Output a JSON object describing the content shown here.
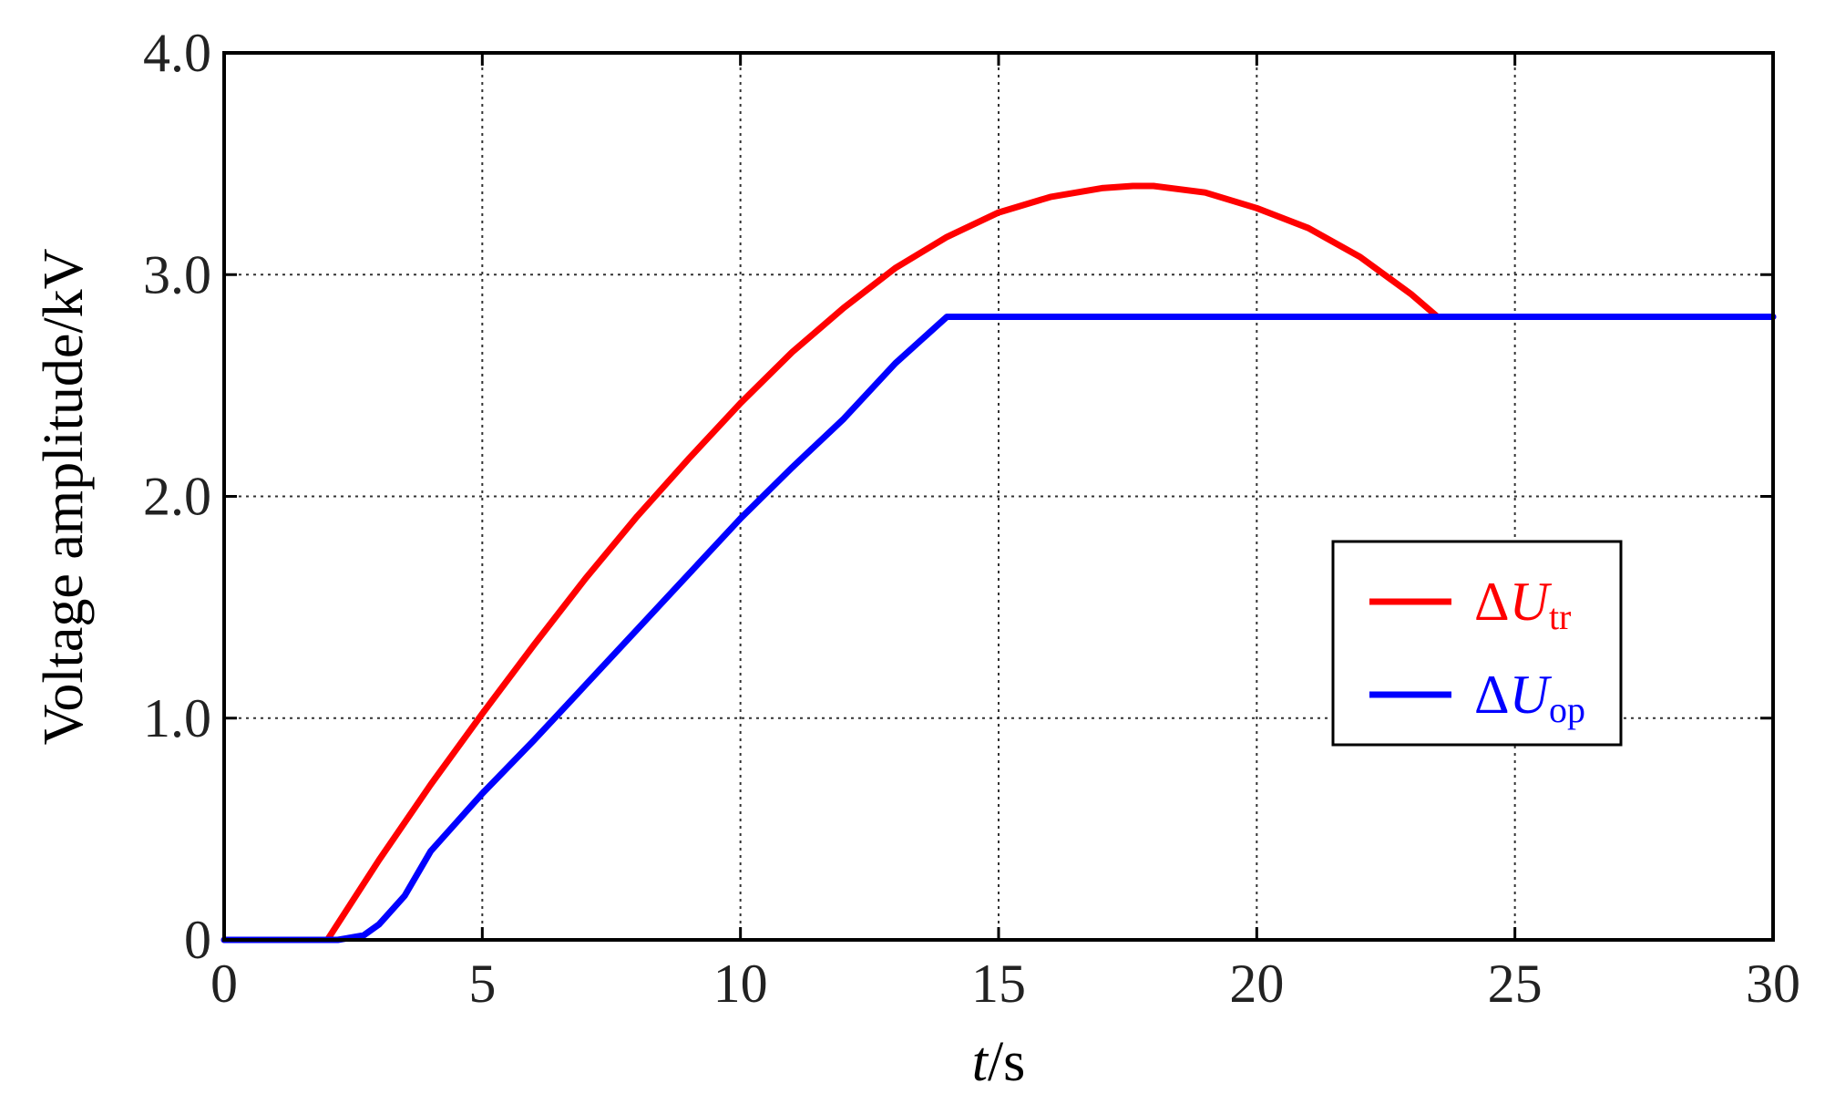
{
  "chart_data": {
    "type": "line",
    "xlabel": {
      "italic": "t",
      "rest": "/s"
    },
    "ylabel": "Voltage amplitude/kV",
    "xlim": [
      0,
      30
    ],
    "ylim": [
      0,
      4
    ],
    "x_ticks": [
      0,
      5,
      10,
      15,
      20,
      25,
      30
    ],
    "x_tick_labels": [
      "0",
      "5",
      "10",
      "15",
      "20",
      "25",
      "30"
    ],
    "y_ticks": [
      0,
      1,
      2,
      3,
      4
    ],
    "y_tick_labels": [
      "0",
      "1.0",
      "2.0",
      "3.0",
      "4.0"
    ],
    "grid": "dotted",
    "legend_position": "right",
    "series": [
      {
        "name": "ΔU_tr",
        "legend": {
          "symbol": "Δ",
          "main": "U",
          "sub": "tr"
        },
        "color": "#ff0000",
        "points": [
          [
            0,
            0
          ],
          [
            2.0,
            0
          ],
          [
            3,
            0.36
          ],
          [
            4,
            0.7
          ],
          [
            5,
            1.02
          ],
          [
            6,
            1.33
          ],
          [
            7,
            1.63
          ],
          [
            8,
            1.91
          ],
          [
            9,
            2.17
          ],
          [
            10,
            2.42
          ],
          [
            11,
            2.65
          ],
          [
            12,
            2.85
          ],
          [
            13,
            3.03
          ],
          [
            14,
            3.17
          ],
          [
            15,
            3.28
          ],
          [
            16,
            3.35
          ],
          [
            17,
            3.39
          ],
          [
            17.6,
            3.4
          ],
          [
            18,
            3.4
          ],
          [
            19,
            3.37
          ],
          [
            20,
            3.3
          ],
          [
            21,
            3.21
          ],
          [
            22,
            3.08
          ],
          [
            23,
            2.91
          ],
          [
            23.5,
            2.81
          ],
          [
            30,
            2.81
          ]
        ]
      },
      {
        "name": "ΔU_op",
        "legend": {
          "symbol": "Δ",
          "main": "U",
          "sub": "op"
        },
        "color": "#0000ff",
        "points": [
          [
            0,
            0
          ],
          [
            2.2,
            0
          ],
          [
            2.7,
            0.02
          ],
          [
            3,
            0.07
          ],
          [
            3.5,
            0.2
          ],
          [
            4,
            0.4
          ],
          [
            5,
            0.66
          ],
          [
            6,
            0.9
          ],
          [
            7,
            1.15
          ],
          [
            8,
            1.4
          ],
          [
            9,
            1.65
          ],
          [
            10,
            1.9
          ],
          [
            11,
            2.13
          ],
          [
            12,
            2.35
          ],
          [
            13,
            2.6
          ],
          [
            14,
            2.81
          ],
          [
            30,
            2.81
          ]
        ]
      }
    ]
  }
}
